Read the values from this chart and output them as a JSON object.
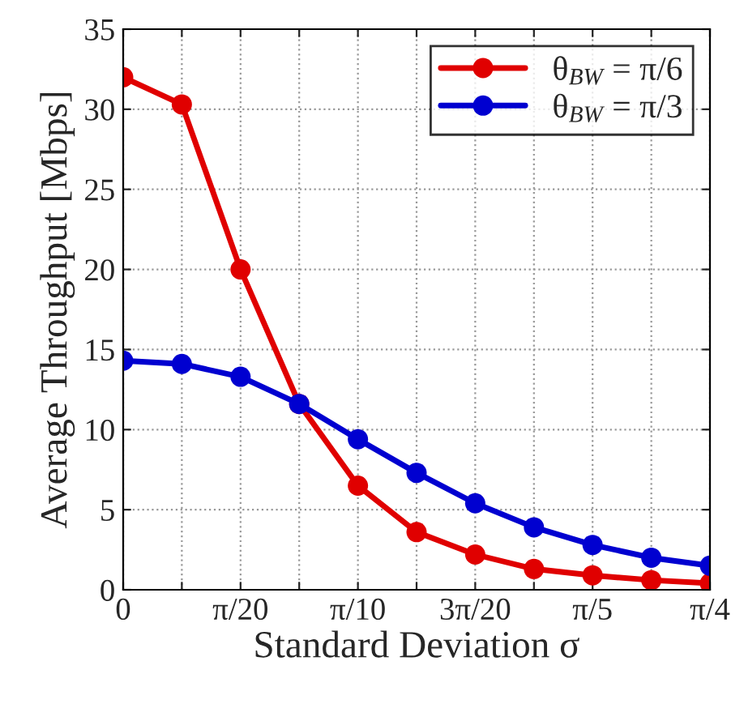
{
  "chart_data": {
    "type": "line",
    "xlabel": "Standard Deviation σ",
    "ylabel": "Average Throughput [Mbps]",
    "x": [
      0,
      0.0785,
      0.1571,
      0.2356,
      0.3142,
      0.3927,
      0.4712,
      0.5498,
      0.6283,
      0.7069,
      0.7854
    ],
    "series": [
      {
        "name": "θ$_{BW}$ = π/6",
        "color": "#e00000",
        "values": [
          32.0,
          30.3,
          20.0,
          11.6,
          6.5,
          3.6,
          2.2,
          1.3,
          0.9,
          0.6,
          0.4
        ]
      },
      {
        "name": "θ$_{BW}$ = π/3",
        "color": "#0000d0",
        "values": [
          14.3,
          14.1,
          13.3,
          11.6,
          9.4,
          7.3,
          5.4,
          3.9,
          2.8,
          2.0,
          1.5
        ]
      }
    ],
    "xlim": [
      0,
      0.7854
    ],
    "xticks": [
      {
        "value": 0,
        "label": "0"
      },
      {
        "value": 0.0785,
        "label": null
      },
      {
        "value": 0.1571,
        "label": "π/20"
      },
      {
        "value": 0.2356,
        "label": null
      },
      {
        "value": 0.3142,
        "label": "π/10"
      },
      {
        "value": 0.3927,
        "label": null
      },
      {
        "value": 0.4712,
        "label": "3π/20"
      },
      {
        "value": 0.5498,
        "label": null
      },
      {
        "value": 0.6283,
        "label": "π/5"
      },
      {
        "value": 0.7069,
        "label": null
      },
      {
        "value": 0.7854,
        "label": "π/4"
      }
    ],
    "ylim": [
      0,
      35
    ],
    "yticks": [
      0,
      5,
      10,
      15,
      20,
      25,
      30,
      35
    ],
    "grid": true,
    "legend": "top right",
    "marker": "circle",
    "line_style": "solid"
  }
}
